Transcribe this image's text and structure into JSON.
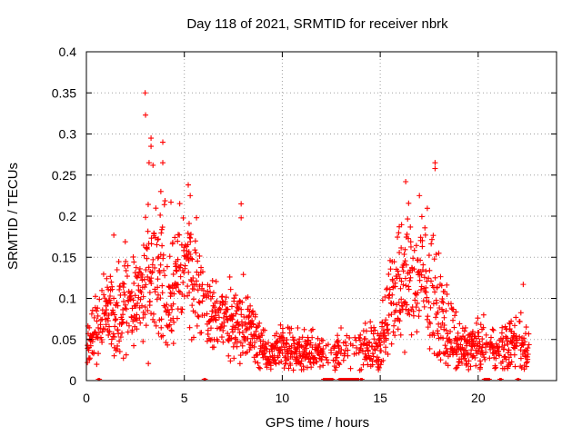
{
  "chart_data": {
    "type": "scatter",
    "title": "Day 118 of 2021, SRMTID for receiver nbrk",
    "xlabel": "GPS time / hours",
    "ylabel": "SRMTID / TECUs",
    "xlim": [
      0,
      24.0
    ],
    "ylim": [
      0,
      0.4
    ],
    "xticks": [
      0,
      5,
      10,
      15,
      20
    ],
    "xtick_labels": [
      "0",
      "5",
      "10",
      "15",
      "20"
    ],
    "yticks": [
      0,
      0.05,
      0.1,
      0.15,
      0.2,
      0.25,
      0.3,
      0.35,
      0.4
    ],
    "ytick_labels": [
      "0",
      "0.05",
      "0.1",
      "0.15",
      "0.2",
      "0.25",
      "0.3",
      "0.35",
      "0.4"
    ],
    "grid": true,
    "marker": "+",
    "color": "#ff0000",
    "envelope": {
      "description": "Approximate typical SRMTID level (center) and scatter spread (spread) by hour, read from the plot",
      "hours": [
        0,
        0.5,
        1,
        1.5,
        2,
        2.5,
        3,
        3.5,
        4,
        4.5,
        5,
        5.5,
        6,
        6.5,
        7,
        7.5,
        8,
        8.5,
        9,
        9.5,
        10,
        10.5,
        11,
        11.5,
        12,
        12.5,
        13,
        13.5,
        14,
        14.5,
        15,
        15.5,
        16,
        16.5,
        17,
        17.5,
        18,
        18.5,
        19,
        19.5,
        20,
        20.5,
        21,
        21.5,
        22,
        22.5
      ],
      "center": [
        0.045,
        0.06,
        0.085,
        0.09,
        0.1,
        0.095,
        0.1,
        0.12,
        0.12,
        0.115,
        0.14,
        0.13,
        0.1,
        0.08,
        0.075,
        0.07,
        0.07,
        0.06,
        0.035,
        0.035,
        0.04,
        0.04,
        0.035,
        0.035,
        0.03,
        0.035,
        0.04,
        0.035,
        0.04,
        0.04,
        0.04,
        0.1,
        0.12,
        0.13,
        0.12,
        0.11,
        0.085,
        0.06,
        0.04,
        0.04,
        0.04,
        0.045,
        0.035,
        0.04,
        0.05,
        0.04
      ],
      "spread": [
        0.015,
        0.03,
        0.03,
        0.04,
        0.04,
        0.035,
        0.06,
        0.06,
        0.06,
        0.05,
        0.05,
        0.045,
        0.03,
        0.03,
        0.03,
        0.03,
        0.035,
        0.025,
        0.015,
        0.015,
        0.02,
        0.02,
        0.015,
        0.015,
        0.015,
        0.015,
        0.015,
        0.015,
        0.02,
        0.02,
        0.02,
        0.04,
        0.05,
        0.05,
        0.05,
        0.05,
        0.04,
        0.03,
        0.02,
        0.02,
        0.02,
        0.02,
        0.015,
        0.02,
        0.025,
        0.02
      ]
    },
    "peaks": [
      {
        "x": 3.0,
        "y": 0.35
      },
      {
        "x": 3.02,
        "y": 0.323
      },
      {
        "x": 3.3,
        "y": 0.295
      },
      {
        "x": 3.3,
        "y": 0.285
      },
      {
        "x": 3.2,
        "y": 0.265
      },
      {
        "x": 3.4,
        "y": 0.262
      },
      {
        "x": 3.9,
        "y": 0.29
      },
      {
        "x": 3.9,
        "y": 0.265
      },
      {
        "x": 3.8,
        "y": 0.23
      },
      {
        "x": 5.2,
        "y": 0.238
      },
      {
        "x": 5.3,
        "y": 0.225
      },
      {
        "x": 7.9,
        "y": 0.215
      },
      {
        "x": 7.9,
        "y": 0.198
      },
      {
        "x": 17.8,
        "y": 0.265
      },
      {
        "x": 17.8,
        "y": 0.258
      },
      {
        "x": 16.3,
        "y": 0.242
      },
      {
        "x": 17.0,
        "y": 0.225
      },
      {
        "x": 1.4,
        "y": 0.177
      },
      {
        "x": 22.3,
        "y": 0.117
      }
    ],
    "zero_segments": [
      [
        0.6,
        0.7
      ],
      [
        6.0,
        6.1
      ],
      [
        12.1,
        12.6
      ],
      [
        12.9,
        13.9
      ],
      [
        14.0,
        14.1
      ],
      [
        20.3,
        20.6
      ],
      [
        21.1,
        21.2
      ],
      [
        22.0,
        22.1
      ]
    ]
  }
}
